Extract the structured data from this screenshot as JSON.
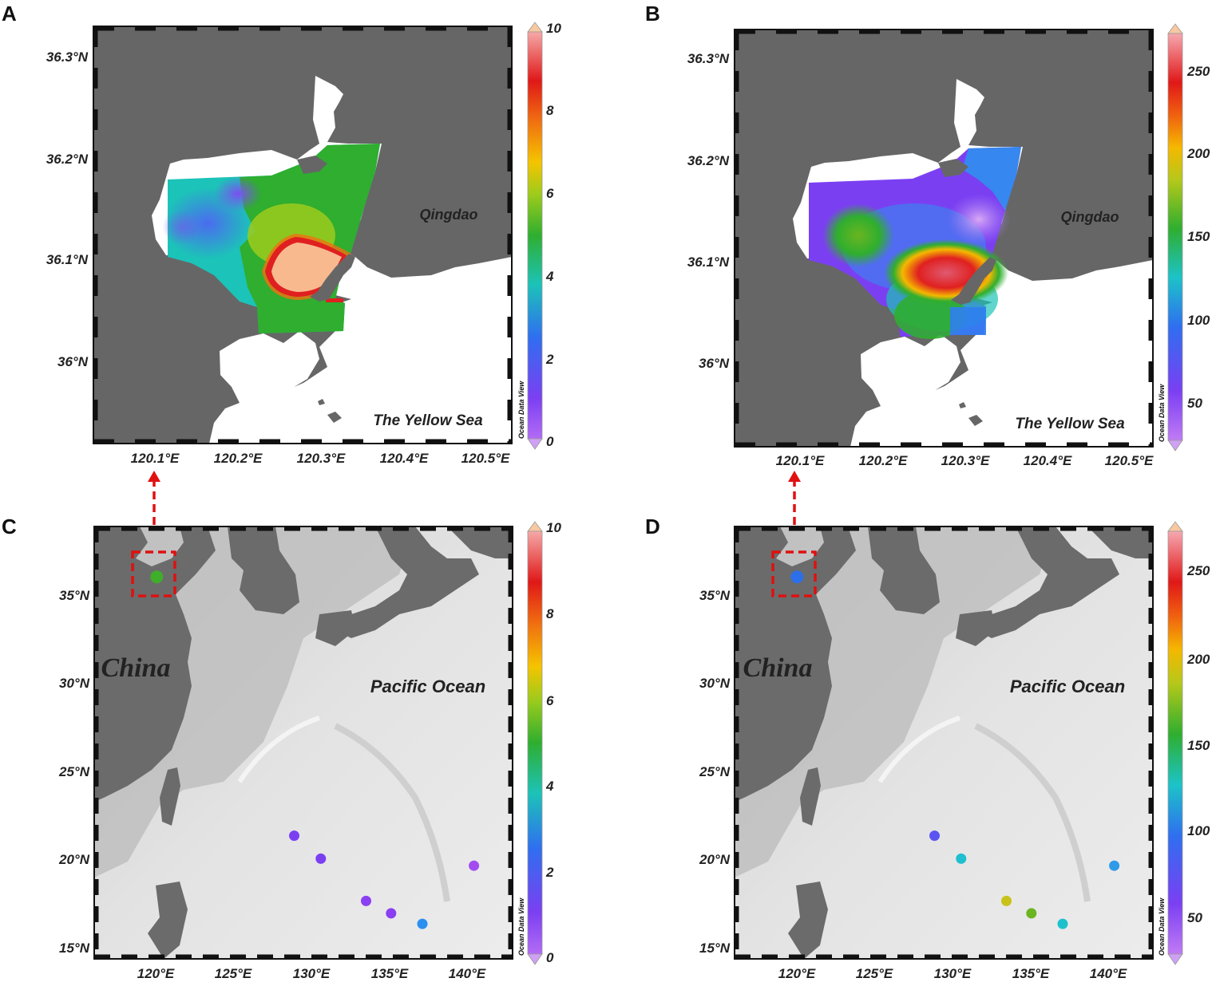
{
  "panels": {
    "A": {
      "letter": "A",
      "lat_labels": [
        "36.3°N",
        "36.2°N",
        "36.1°N",
        "36°N"
      ],
      "lon_labels": [
        "120.1°E",
        "120.2°E",
        "120.3°E",
        "120.4°E",
        "120.5°E"
      ],
      "place_labels": {
        "city": "Qingdao",
        "sea": "The Yellow Sea"
      },
      "colorbar": {
        "ticks": [
          "10",
          "8",
          "6",
          "4",
          "2",
          "0"
        ],
        "credit": "Ocean Data View"
      }
    },
    "B": {
      "letter": "B",
      "lat_labels": [
        "36.3°N",
        "36.2°N",
        "36.1°N",
        "36°N"
      ],
      "lon_labels": [
        "120.1°E",
        "120.2°E",
        "120.3°E",
        "120.4°E",
        "120.5°E"
      ],
      "place_labels": {
        "city": "Qingdao",
        "sea": "The Yellow Sea"
      },
      "colorbar": {
        "ticks": [
          "250",
          "200",
          "150",
          "100",
          "50"
        ],
        "credit": "Ocean Data View"
      }
    },
    "C": {
      "letter": "C",
      "lat_labels": [
        "35°N",
        "30°N",
        "25°N",
        "20°N",
        "15°N"
      ],
      "lon_labels": [
        "120°E",
        "125°E",
        "130°E",
        "135°E",
        "140°E"
      ],
      "place_labels": {
        "land": "China",
        "ocean": "Pacific Ocean"
      },
      "colorbar": {
        "ticks": [
          "10",
          "8",
          "6",
          "4",
          "2",
          "0"
        ],
        "credit": "Ocean Data View"
      },
      "stations": [
        {
          "lon": 120.0,
          "lat": 36.1,
          "value": 5.5,
          "color": "#3fae2a"
        },
        {
          "lon": 128.8,
          "lat": 21.6,
          "value": 1.2,
          "color": "#7b3ff2"
        },
        {
          "lon": 130.5,
          "lat": 20.3,
          "value": 1.1,
          "color": "#7b3ff2"
        },
        {
          "lon": 133.4,
          "lat": 17.9,
          "value": 0.9,
          "color": "#8a3ff2"
        },
        {
          "lon": 135.0,
          "lat": 17.2,
          "value": 0.9,
          "color": "#8a3ff2"
        },
        {
          "lon": 137.0,
          "lat": 16.6,
          "value": 2.6,
          "color": "#2b8ff0"
        },
        {
          "lon": 140.3,
          "lat": 19.9,
          "value": 0.5,
          "color": "#a24cf0"
        }
      ]
    },
    "D": {
      "letter": "D",
      "lat_labels": [
        "35°N",
        "30°N",
        "25°N",
        "20°N",
        "15°N"
      ],
      "lon_labels": [
        "120°E",
        "125°E",
        "130°E",
        "135°E",
        "140°E"
      ],
      "place_labels": {
        "land": "China",
        "ocean": "Pacific Ocean"
      },
      "colorbar": {
        "ticks": [
          "250",
          "200",
          "150",
          "100",
          "50"
        ],
        "credit": "Ocean Data View"
      },
      "stations": [
        {
          "lon": 120.0,
          "lat": 36.1,
          "value": 85,
          "color": "#2c6fe8"
        },
        {
          "lon": 128.8,
          "lat": 21.6,
          "value": 70,
          "color": "#5a55f0"
        },
        {
          "lon": 130.5,
          "lat": 20.3,
          "value": 110,
          "color": "#1fbfcf"
        },
        {
          "lon": 133.4,
          "lat": 17.9,
          "value": 185,
          "color": "#c8c21a"
        },
        {
          "lon": 135.0,
          "lat": 17.2,
          "value": 155,
          "color": "#6ab520"
        },
        {
          "lon": 137.0,
          "lat": 16.6,
          "value": 105,
          "color": "#1cc0cc"
        },
        {
          "lon": 140.3,
          "lat": 19.9,
          "value": 95,
          "color": "#2f9ae8"
        }
      ]
    }
  }
}
